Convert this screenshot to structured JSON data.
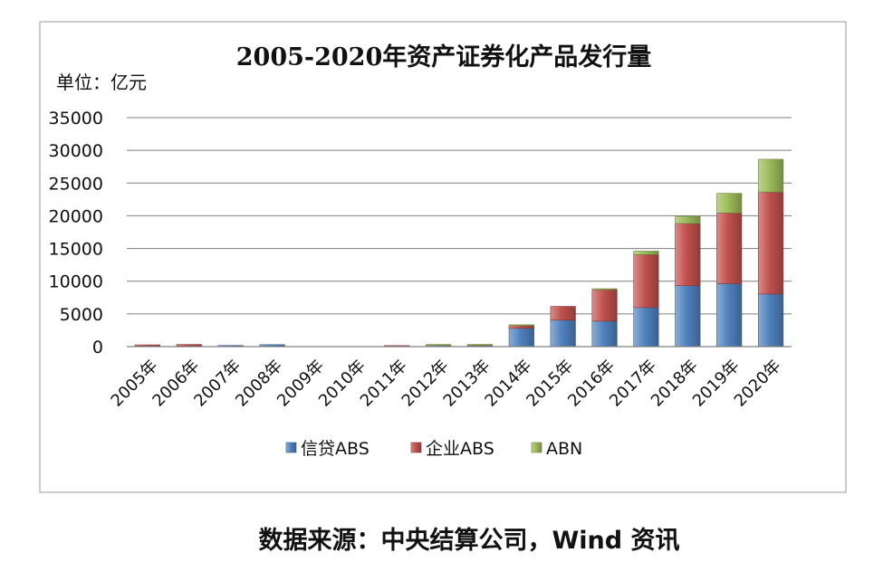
{
  "chart_data": {
    "type": "bar",
    "stacked": true,
    "title": "2005-2020年资产证券化产品发行量",
    "unit_label": "单位：亿元",
    "categories": [
      "2005年",
      "2006年",
      "2007年",
      "2008年",
      "2009年",
      "2010年",
      "2011年",
      "2012年",
      "2013年",
      "2014年",
      "2015年",
      "2016年",
      "2017年",
      "2018年",
      "2019年",
      "2020年"
    ],
    "series": [
      {
        "name": "信贷ABS",
        "color": "#4f81bd",
        "values": [
          70,
          100,
          180,
          300,
          0,
          0,
          10,
          190,
          160,
          2800,
          4050,
          3900,
          5980,
          9320,
          9630,
          8040
        ]
      },
      {
        "name": "企业ABS",
        "color": "#c0504d",
        "values": [
          200,
          230,
          0,
          0,
          0,
          0,
          40,
          0,
          40,
          400,
          2100,
          4800,
          8100,
          9500,
          10800,
          15600
        ]
      },
      {
        "name": "ABN",
        "color": "#9bbb59",
        "values": [
          0,
          0,
          0,
          0,
          0,
          0,
          0,
          90,
          120,
          50,
          0,
          150,
          520,
          1100,
          3000,
          5000
        ]
      }
    ],
    "ylim": [
      0,
      35000
    ],
    "yticks": [
      "0",
      "5000",
      "10000",
      "15000",
      "20000",
      "25000",
      "30000",
      "35000"
    ],
    "grid": true,
    "legend_position": "bottom"
  },
  "source_note": "数据来源：中央结算公司，Wind 资讯"
}
